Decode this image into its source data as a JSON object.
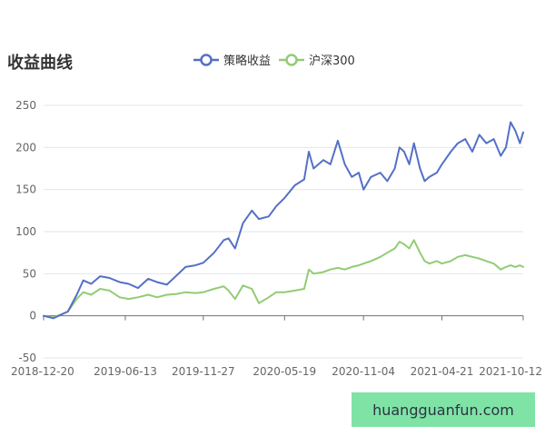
{
  "colors": {
    "strategy": "#5470c6",
    "benchmark": "#91cc75",
    "grid": "#e3e6ee",
    "axis": "#6e7079",
    "watermark_bg": "#7fe3a6"
  },
  "watermark": "huangguanfun.com",
  "chart_data": {
    "type": "line",
    "title": "收益曲线",
    "xlabel": "",
    "ylabel": "",
    "ylim": [
      -50,
      250
    ],
    "yticks": [
      -50,
      0,
      50,
      100,
      150,
      200,
      250
    ],
    "xlim": [
      "2018-12-20",
      "2021-10-12"
    ],
    "xticks": [
      "2018-12-20",
      "2019-06-13",
      "2019-11-27",
      "2020-05-19",
      "2020-11-04",
      "2021-04-21",
      "2021-10-12"
    ],
    "grid": true,
    "legend_position": "top-center",
    "series": [
      {
        "name": "策略收益",
        "color": "#5470c6",
        "x": [
          "2018-12-20",
          "2019-01-10",
          "2019-02-10",
          "2019-03-01",
          "2019-03-15",
          "2019-04-01",
          "2019-04-20",
          "2019-05-10",
          "2019-06-01",
          "2019-06-20",
          "2019-07-10",
          "2019-08-01",
          "2019-08-20",
          "2019-09-10",
          "2019-10-01",
          "2019-10-20",
          "2019-11-10",
          "2019-11-27",
          "2019-12-20",
          "2020-01-10",
          "2020-01-20",
          "2020-02-03",
          "2020-02-20",
          "2020-03-10",
          "2020-03-25",
          "2020-04-15",
          "2020-05-01",
          "2020-05-19",
          "2020-06-10",
          "2020-06-30",
          "2020-07-10",
          "2020-07-20",
          "2020-08-10",
          "2020-08-25",
          "2020-09-10",
          "2020-09-25",
          "2020-10-10",
          "2020-10-25",
          "2020-11-04",
          "2020-11-20",
          "2020-12-10",
          "2020-12-25",
          "2021-01-10",
          "2021-01-20",
          "2021-01-30",
          "2021-02-10",
          "2021-02-20",
          "2021-03-05",
          "2021-03-15",
          "2021-03-25",
          "2021-04-10",
          "2021-04-21",
          "2021-05-10",
          "2021-05-25",
          "2021-06-10",
          "2021-06-25",
          "2021-07-10",
          "2021-07-25",
          "2021-08-10",
          "2021-08-25",
          "2021-09-05",
          "2021-09-15",
          "2021-09-25",
          "2021-10-05",
          "2021-10-12"
        ],
        "values": [
          0,
          -3,
          5,
          25,
          42,
          38,
          47,
          45,
          40,
          38,
          33,
          44,
          40,
          37,
          48,
          58,
          60,
          63,
          75,
          90,
          92,
          80,
          110,
          125,
          115,
          118,
          130,
          140,
          155,
          162,
          195,
          175,
          185,
          180,
          208,
          180,
          165,
          170,
          150,
          165,
          170,
          160,
          175,
          200,
          195,
          180,
          205,
          175,
          160,
          165,
          170,
          180,
          195,
          205,
          210,
          195,
          215,
          205,
          210,
          190,
          200,
          230,
          220,
          205,
          218
        ]
      },
      {
        "name": "沪深300",
        "color": "#91cc75",
        "x": [
          "2018-12-20",
          "2019-01-10",
          "2019-02-10",
          "2019-03-01",
          "2019-03-15",
          "2019-04-01",
          "2019-04-20",
          "2019-05-10",
          "2019-06-01",
          "2019-06-20",
          "2019-07-10",
          "2019-08-01",
          "2019-08-20",
          "2019-09-10",
          "2019-10-01",
          "2019-10-20",
          "2019-11-10",
          "2019-11-27",
          "2019-12-20",
          "2020-01-10",
          "2020-01-20",
          "2020-02-03",
          "2020-02-20",
          "2020-03-10",
          "2020-03-25",
          "2020-04-15",
          "2020-05-01",
          "2020-05-19",
          "2020-06-10",
          "2020-06-30",
          "2020-07-10",
          "2020-07-20",
          "2020-08-10",
          "2020-08-25",
          "2020-09-10",
          "2020-09-25",
          "2020-10-10",
          "2020-10-25",
          "2020-11-04",
          "2020-11-20",
          "2020-12-10",
          "2020-12-25",
          "2021-01-10",
          "2021-01-20",
          "2021-01-30",
          "2021-02-10",
          "2021-02-20",
          "2021-03-05",
          "2021-03-15",
          "2021-03-25",
          "2021-04-10",
          "2021-04-21",
          "2021-05-10",
          "2021-05-25",
          "2021-06-10",
          "2021-06-25",
          "2021-07-10",
          "2021-07-25",
          "2021-08-10",
          "2021-08-25",
          "2021-09-05",
          "2021-09-15",
          "2021-09-25",
          "2021-10-05",
          "2021-10-12"
        ],
        "values": [
          0,
          -2,
          5,
          20,
          28,
          25,
          32,
          30,
          22,
          20,
          22,
          25,
          22,
          25,
          26,
          28,
          27,
          28,
          32,
          35,
          30,
          20,
          36,
          32,
          15,
          22,
          28,
          28,
          30,
          32,
          55,
          50,
          52,
          55,
          57,
          55,
          58,
          60,
          62,
          65,
          70,
          75,
          80,
          88,
          85,
          80,
          90,
          75,
          65,
          62,
          65,
          62,
          65,
          70,
          72,
          70,
          68,
          65,
          62,
          55,
          58,
          60,
          58,
          60,
          58
        ]
      }
    ]
  }
}
